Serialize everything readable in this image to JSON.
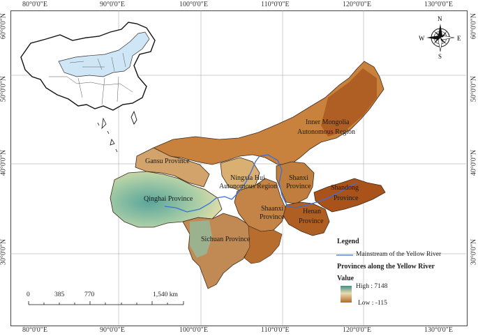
{
  "axes": {
    "top": [
      "80°0'0\"E",
      "90°0'0\"E",
      "100°0'0\"E",
      "110°0'0\"E",
      "120°0'0\"E",
      "130°0'0\"E"
    ],
    "bottom": [
      "80°0'0\"E",
      "90°0'0\"E",
      "100°0'0\"E",
      "110°0'0\"E",
      "120°0'0\"E",
      "130°0'0\"E"
    ],
    "left": [
      "60°0'0\"N",
      "50°0'0\"N",
      "40°0'0\"N",
      "30°0'0\"N"
    ],
    "right": [
      "60°0'0\"N",
      "50°0'0\"N",
      "40°0'0\"N",
      "30°0'0\"N"
    ]
  },
  "compass": {
    "n": "N",
    "s": "S",
    "e": "E",
    "w": "W"
  },
  "provinces": {
    "inner_mongolia_line1": "Inner Mongolia",
    "inner_mongolia_line2": "Autonomous Region",
    "gansu": "Gansu Province",
    "ningxia_line1": "Ningxia Hui",
    "ningxia_line2": "Autonomous Region",
    "shanxi_line1": "Shanxi",
    "shanxi_line2": "Province",
    "shandong_line1": "Shandong",
    "shandong_line2": "Province",
    "qinghai": "Qinghai Province",
    "shaanxi_line1": "Shaanxi",
    "shaanxi_line2": "Province",
    "henan_line1": "Henan",
    "henan_line2": "Province",
    "sichuan": "Sichuan Province"
  },
  "legend": {
    "title": "Legend",
    "river": "Mainstream of the Yellow River",
    "provinces_title": "Provinces along the Yellow River",
    "value_title": "Value",
    "high": "High : 7148",
    "low": "Low : -115"
  },
  "scale": {
    "ticks": [
      "0",
      "385",
      "770",
      "1,540 km"
    ]
  },
  "colors": {
    "low_terrain": "#b5651d",
    "mid_terrain": "#e2c07a",
    "high_terrain": "#3f8f8a",
    "river": "#3a6fd8",
    "inset_highlight": "#cfe6f7"
  }
}
